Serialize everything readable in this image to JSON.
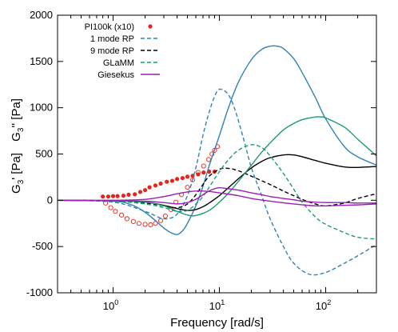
{
  "chart_data": {
    "type": "line",
    "xlabel": "Frequency [rad/s]",
    "ylabel_parts": [
      "G",
      "3",
      "' [Pa]",
      "G",
      "3",
      "'' [Pa]"
    ],
    "xscale": "log",
    "xlim": [
      0.3,
      300
    ],
    "ylim": [
      -1000,
      2000
    ],
    "yticks": [
      -1000,
      -500,
      0,
      500,
      1000,
      1500,
      2000
    ],
    "xticks": [
      {
        "value": 1,
        "base": "10",
        "exp": "0"
      },
      {
        "value": 10,
        "base": "10",
        "exp": "1"
      },
      {
        "value": 100,
        "base": "10",
        "exp": "2"
      }
    ],
    "legend_position": "top-left",
    "legend": [
      {
        "label": "PI100k (x10)",
        "color": "#e8251b",
        "style": "dots"
      },
      {
        "label": "1 mode RP",
        "color": "#2f82b8",
        "style": "dashed"
      },
      {
        "label": "9 mode RP",
        "color": "#000000",
        "style": "dashed"
      },
      {
        "label": "GLaMM",
        "color": "#1e9b74",
        "style": "dashed"
      },
      {
        "label": "Giesekus",
        "color": "#9a1fb5",
        "style": "solid"
      }
    ],
    "series": [
      {
        "name": "PI100k (x10)",
        "component": "G3'",
        "color": "#e8251b",
        "marker": "filled",
        "x": [
          0.8,
          0.9,
          1.0,
          1.1,
          1.25,
          1.4,
          1.6,
          1.8,
          2.0,
          2.2,
          2.5,
          2.8,
          3.2,
          3.6,
          4.0,
          4.5,
          5.0,
          5.6,
          6.3,
          7.1,
          8.0,
          9.0
        ],
        "y": [
          40,
          40,
          45,
          45,
          50,
          60,
          65,
          90,
          110,
          140,
          160,
          180,
          200,
          210,
          230,
          240,
          255,
          265,
          280,
          300,
          310,
          310
        ]
      },
      {
        "name": "PI100k (x10)",
        "component": "G3''",
        "color": "#e8251b",
        "marker": "open",
        "x": [
          0.85,
          0.95,
          1.05,
          1.2,
          1.35,
          1.55,
          1.75,
          2.0,
          2.25,
          2.5,
          2.8,
          3.1,
          3.5,
          3.9,
          4.4,
          5.0,
          5.6,
          6.3,
          7.1,
          7.9,
          8.5,
          9.0,
          9.6
        ],
        "y": [
          -30,
          -80,
          -120,
          -160,
          -200,
          -230,
          -250,
          -260,
          -265,
          -250,
          -220,
          -170,
          -100,
          -20,
          60,
          140,
          220,
          300,
          370,
          440,
          500,
          540,
          580
        ]
      },
      {
        "name": "1 mode RP",
        "component": "G3'",
        "color": "#2f82b8",
        "dash": "dashed",
        "x": [
          0.3,
          1,
          2,
          3,
          4,
          5,
          6,
          7,
          8,
          9,
          10,
          12,
          14,
          17,
          20,
          25,
          30,
          40,
          50,
          70,
          100,
          150,
          200,
          300
        ],
        "y": [
          0,
          -20,
          -120,
          -200,
          -150,
          50,
          350,
          700,
          950,
          1120,
          1200,
          1150,
          980,
          650,
          350,
          50,
          -200,
          -500,
          -680,
          -800,
          -780,
          -680,
          -600,
          -480
        ]
      },
      {
        "name": "1 mode RP",
        "component": "G3''",
        "color": "#2f82b8",
        "dash": "solid",
        "x": [
          0.3,
          1,
          1.5,
          2,
          2.5,
          3,
          3.5,
          4,
          4.5,
          5,
          6,
          7,
          8,
          10,
          12,
          15,
          20,
          25,
          30,
          35,
          40,
          50,
          60,
          80,
          100,
          150,
          200,
          300
        ],
        "y": [
          0,
          -10,
          -50,
          -130,
          -220,
          -300,
          -350,
          -370,
          -330,
          -250,
          -60,
          150,
          370,
          700,
          980,
          1270,
          1520,
          1630,
          1665,
          1665,
          1640,
          1530,
          1380,
          1110,
          880,
          580,
          470,
          380
        ]
      },
      {
        "name": "9 mode RP",
        "component": "G3'",
        "color": "#000000",
        "dash": "dashed",
        "x": [
          0.3,
          1,
          2,
          3,
          4,
          5,
          6,
          7,
          8,
          10,
          12,
          15,
          20,
          30,
          40,
          60,
          80,
          100,
          150,
          200,
          300
        ],
        "y": [
          0,
          -5,
          -30,
          -60,
          -80,
          -40,
          60,
          170,
          260,
          335,
          345,
          320,
          260,
          170,
          100,
          10,
          -40,
          -60,
          -30,
          20,
          70
        ]
      },
      {
        "name": "9 mode RP",
        "component": "G3''",
        "color": "#000000",
        "dash": "solid",
        "x": [
          0.3,
          1,
          2,
          3,
          4,
          5,
          6,
          7,
          8,
          10,
          12,
          15,
          20,
          25,
          30,
          40,
          50,
          60,
          80,
          100,
          150,
          200,
          300
        ],
        "y": [
          0,
          -5,
          -20,
          -55,
          -90,
          -110,
          -100,
          -70,
          -30,
          50,
          130,
          230,
          350,
          420,
          460,
          490,
          490,
          470,
          430,
          400,
          360,
          355,
          365
        ]
      },
      {
        "name": "GLaMM",
        "component": "G3'",
        "color": "#1e9b74",
        "dash": "dashed",
        "x": [
          0.3,
          1,
          2,
          3,
          4,
          5,
          6,
          7,
          8,
          10,
          12,
          15,
          20,
          25,
          30,
          40,
          50,
          60,
          80,
          100,
          150,
          200,
          300
        ],
        "y": [
          0,
          -10,
          -40,
          -80,
          -120,
          -110,
          -40,
          40,
          140,
          310,
          430,
          540,
          600,
          570,
          480,
          290,
          120,
          -20,
          -180,
          -260,
          -350,
          -400,
          -420
        ]
      },
      {
        "name": "GLaMM",
        "component": "G3''",
        "color": "#1e9b74",
        "dash": "solid",
        "x": [
          0.3,
          1,
          2,
          3,
          4,
          5,
          6,
          8,
          10,
          12,
          15,
          20,
          25,
          30,
          40,
          50,
          60,
          80,
          90,
          100,
          150,
          200,
          300
        ],
        "y": [
          0,
          -5,
          -20,
          -60,
          -120,
          -160,
          -165,
          -110,
          -20,
          70,
          200,
          380,
          520,
          620,
          760,
          830,
          870,
          900,
          900,
          890,
          790,
          660,
          480
        ]
      },
      {
        "name": "Giesekus",
        "component": "G3'",
        "color": "#9a1fb5",
        "dash": "solid",
        "x": [
          0.3,
          1,
          2,
          3,
          4,
          5,
          6,
          7,
          8,
          10,
          15,
          20,
          30,
          50,
          80,
          100,
          200,
          300
        ],
        "y": [
          0,
          0,
          10,
          40,
          70,
          90,
          100,
          100,
          95,
          80,
          50,
          20,
          -10,
          -40,
          -60,
          -60,
          -50,
          -40
        ]
      },
      {
        "name": "Giesekus",
        "component": "G3''",
        "color": "#9a1fb5",
        "dash": "solid",
        "x": [
          0.3,
          1,
          2,
          3,
          4,
          5,
          6,
          7,
          8,
          9,
          10,
          12,
          15,
          20,
          25,
          30,
          40,
          50,
          60,
          80,
          100,
          150,
          200,
          300
        ],
        "y": [
          0,
          -5,
          -10,
          -25,
          -40,
          -25,
          10,
          60,
          100,
          125,
          135,
          125,
          110,
          80,
          60,
          40,
          20,
          5,
          -10,
          -20,
          -25,
          -25,
          -30,
          -30
        ]
      }
    ]
  }
}
